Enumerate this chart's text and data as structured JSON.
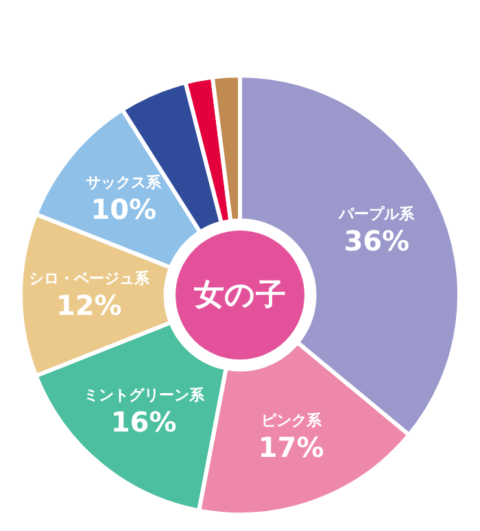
{
  "chart_data": {
    "type": "donut",
    "title": "女の子",
    "categories": [
      "パープル系",
      "ピンク系",
      "ミントグリーン系",
      "シロ・ベージュ系",
      "サックス系",
      null,
      null,
      null
    ],
    "values": [
      36,
      17,
      16,
      12,
      10,
      5,
      2,
      2
    ],
    "value_labels": [
      "36%",
      "17%",
      "16%",
      "12%",
      "10%",
      null,
      null,
      null
    ],
    "colors": [
      "#9b99cc",
      "#ee88a8",
      "#4bbf9f",
      "#eac98a",
      "#8fc0e8",
      "#2f4b9a",
      "#e4003c",
      "#c08a50"
    ]
  }
}
